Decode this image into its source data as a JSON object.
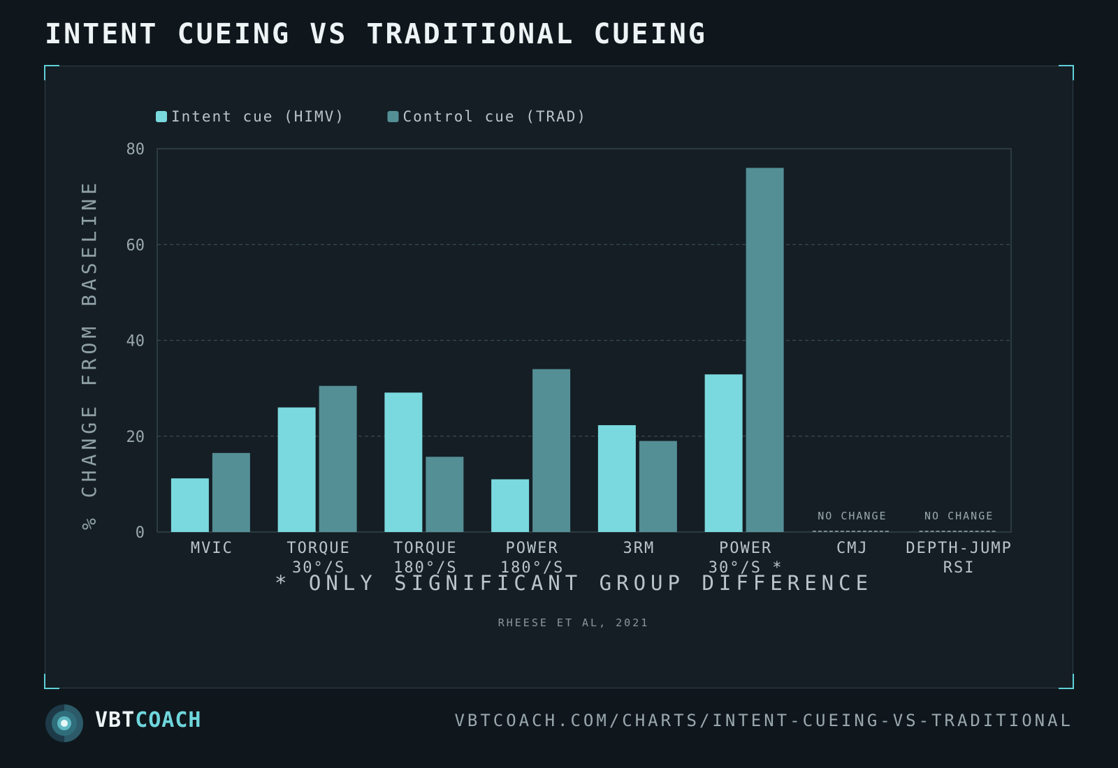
{
  "title": "INTENT CUEING VS TRADITIONAL CUEING",
  "colors": {
    "background": "#0f171c",
    "panel": "#151e25",
    "accent": "#5fd0d8",
    "intent": "#7ad9de",
    "control": "#548f95"
  },
  "chart_data": {
    "type": "bar",
    "categories": [
      [
        "MVIC"
      ],
      [
        "TORQUE",
        "30°/S"
      ],
      [
        "TORQUE",
        "180°/S"
      ],
      [
        "POWER",
        "180°/S"
      ],
      [
        "3RM"
      ],
      [
        "POWER",
        "30°/S *"
      ],
      [
        "CMJ"
      ],
      [
        "DEPTH-JUMP",
        "RSI"
      ]
    ],
    "series": [
      {
        "name": "Intent cue (HIMV)",
        "color": "#7ad9de",
        "values": [
          11.2,
          26.0,
          29.1,
          11.0,
          22.3,
          32.9,
          null,
          null
        ]
      },
      {
        "name": "Control cue (TRAD)",
        "color": "#548f95",
        "values": [
          16.5,
          30.5,
          15.7,
          34.0,
          19.0,
          76.0,
          null,
          null
        ]
      }
    ],
    "ylabel": "% CHANGE FROM BASELINE",
    "ylim": [
      0,
      80
    ],
    "yticks": [
      0,
      20,
      40,
      60,
      80
    ],
    "grid": true,
    "legend_position": "top-left",
    "no_change_label": "NO CHANGE",
    "no_change_categories": [
      6,
      7
    ],
    "annotation": "* ONLY SIGNIFICANT GROUP DIFFERENCE",
    "source": "RHEESE ET AL, 2021"
  },
  "footer": {
    "brand_part1": "VBT",
    "brand_part2": "COACH",
    "url": "VBTCOACH.COM/CHARTS/INTENT-CUEING-VS-TRADITIONAL"
  }
}
